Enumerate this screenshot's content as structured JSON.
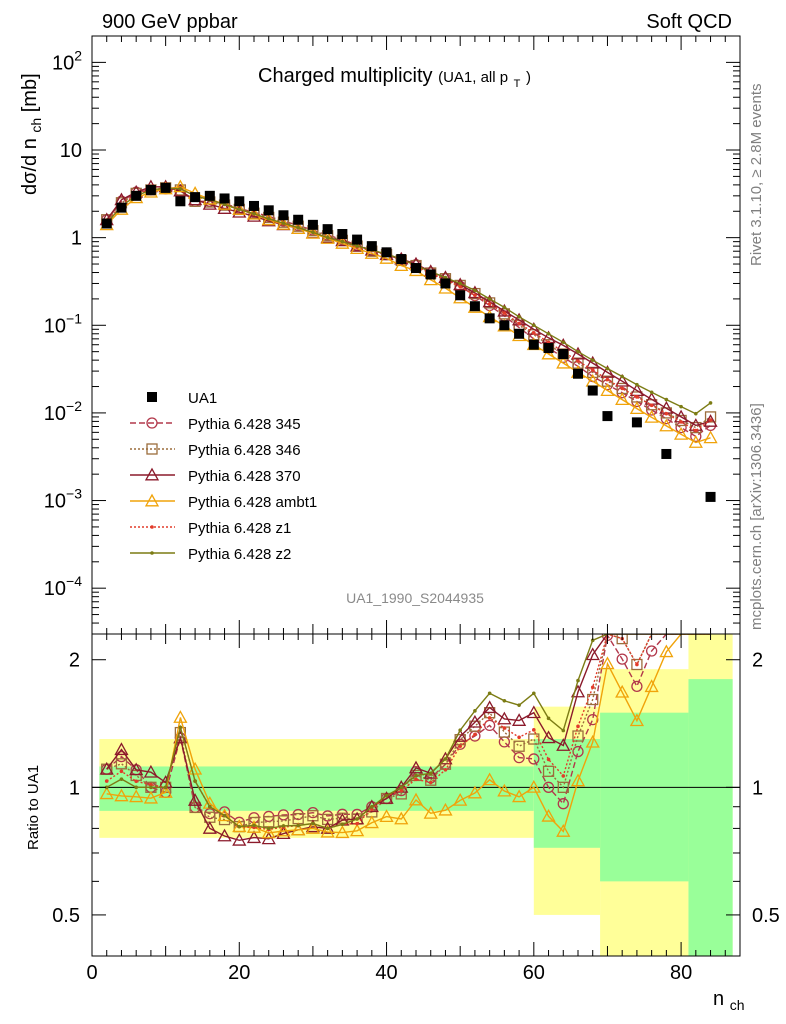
{
  "header": {
    "left": "900 GeV ppbar",
    "right": "Soft QCD"
  },
  "side_labels": {
    "top": "Rivet 3.1.10, ≥ 2.8M events",
    "bottom": "mcplots.cern.ch [arXiv:1306.3436]"
  },
  "chart_data": [
    {
      "type": "line",
      "title": "Charged multiplicity",
      "title_note": "(UA1, all p",
      "title_note_sub": "T",
      "title_note_end": ")",
      "ylabel": "dσ/d n",
      "ylabel_sub": "ch",
      "ylabel_end": " [mb]",
      "y_scale": "log",
      "xlim": [
        0,
        88
      ],
      "ylim": [
        3e-05,
        200
      ],
      "analysis_id": "UA1_1990_S2044935",
      "y_tick_labels": [
        {
          "value": 100,
          "base": "10",
          "exp": "2"
        },
        {
          "value": 10,
          "base": "10",
          "exp": ""
        },
        {
          "value": 1,
          "base": "1",
          "exp": ""
        },
        {
          "value": 0.1,
          "base": "10",
          "exp": "−1"
        },
        {
          "value": 0.01,
          "base": "10",
          "exp": "−2"
        },
        {
          "value": 0.001,
          "base": "10",
          "exp": "−3"
        },
        {
          "value": 0.0001,
          "base": "10",
          "exp": "−4"
        }
      ],
      "data_series": {
        "name": "UA1",
        "color": "#000000",
        "x": [
          2,
          4,
          6,
          8,
          10,
          12,
          14,
          16,
          18,
          20,
          22,
          24,
          26,
          28,
          30,
          32,
          34,
          36,
          38,
          40,
          42,
          44,
          46,
          48,
          50,
          52,
          54,
          56,
          58,
          60,
          62,
          64,
          66,
          68,
          70,
          74,
          78,
          84
        ],
        "y": [
          1.45,
          2.2,
          3.0,
          3.5,
          3.7,
          2.6,
          2.9,
          3.0,
          2.8,
          2.6,
          2.3,
          2.05,
          1.8,
          1.6,
          1.4,
          1.25,
          1.1,
          0.95,
          0.8,
          0.68,
          0.57,
          0.45,
          0.38,
          0.3,
          0.22,
          0.165,
          0.12,
          0.1,
          0.08,
          0.06,
          0.055,
          0.047,
          0.028,
          0.018,
          0.0092,
          0.0078,
          0.0034,
          0.0011
        ]
      },
      "mc_series": [
        {
          "name": "Pythia 6.428 345",
          "color": "#b2384b",
          "dash": "6,3",
          "marker": "circle",
          "x": [
            2,
            4,
            6,
            8,
            10,
            12,
            14,
            16,
            18,
            20,
            22,
            24,
            26,
            28,
            30,
            32,
            34,
            36,
            38,
            40,
            42,
            44,
            46,
            48,
            50,
            52,
            54,
            56,
            58,
            60,
            62,
            64,
            66,
            68,
            70,
            72,
            74,
            76,
            78,
            80,
            82,
            84
          ],
          "y": [
            1.6,
            2.6,
            3.3,
            3.5,
            3.6,
            3.4,
            2.6,
            2.6,
            2.45,
            2.15,
            1.95,
            1.75,
            1.55,
            1.38,
            1.22,
            1.07,
            0.95,
            0.82,
            0.72,
            0.64,
            0.56,
            0.49,
            0.4,
            0.34,
            0.278,
            0.218,
            0.168,
            0.128,
            0.094,
            0.07,
            0.055,
            0.043,
            0.034,
            0.026,
            0.021,
            0.017,
            0.0135,
            0.0108,
            0.0086,
            0.0068,
            0.0054,
            0.0072
          ]
        },
        {
          "name": "Pythia 6.428 346",
          "color": "#9c6d3c",
          "dash": "2,2",
          "marker": "square",
          "x": [
            2,
            4,
            6,
            8,
            10,
            12,
            14,
            16,
            18,
            20,
            22,
            24,
            26,
            28,
            30,
            32,
            34,
            36,
            38,
            40,
            42,
            44,
            46,
            48,
            50,
            52,
            54,
            56,
            58,
            60,
            62,
            64,
            66,
            68,
            70,
            72,
            74,
            76,
            78,
            80,
            82,
            84
          ],
          "y": [
            1.6,
            2.5,
            3.2,
            3.5,
            3.7,
            3.5,
            2.6,
            2.55,
            2.35,
            2.1,
            1.9,
            1.7,
            1.5,
            1.35,
            1.2,
            1.05,
            0.93,
            0.8,
            0.7,
            0.64,
            0.55,
            0.48,
            0.395,
            0.34,
            0.285,
            0.23,
            0.18,
            0.135,
            0.1,
            0.078,
            0.06,
            0.047,
            0.037,
            0.029,
            0.023,
            0.019,
            0.0152,
            0.0124,
            0.01,
            0.0082,
            0.0068,
            0.009
          ]
        },
        {
          "name": "Pythia 6.428 370",
          "color": "#8b1a2b",
          "dash": "",
          "marker": "triangle",
          "x": [
            2,
            4,
            6,
            8,
            10,
            12,
            14,
            16,
            18,
            20,
            22,
            24,
            26,
            28,
            30,
            32,
            34,
            36,
            38,
            40,
            42,
            44,
            46,
            48,
            50,
            52,
            54,
            56,
            58,
            60,
            62,
            64,
            66,
            68,
            70,
            72,
            74,
            76,
            78,
            80,
            82,
            84
          ],
          "y": [
            1.6,
            2.7,
            3.3,
            3.8,
            3.8,
            3.4,
            2.7,
            2.4,
            2.15,
            1.95,
            1.75,
            1.55,
            1.4,
            1.27,
            1.13,
            1.0,
            0.92,
            0.8,
            0.72,
            0.64,
            0.57,
            0.5,
            0.41,
            0.35,
            0.29,
            0.235,
            0.185,
            0.145,
            0.115,
            0.09,
            0.072,
            0.059,
            0.047,
            0.037,
            0.029,
            0.023,
            0.018,
            0.0143,
            0.0113,
            0.009,
            0.0072,
            0.008
          ]
        },
        {
          "name": "Pythia 6.428 ambt1",
          "color": "#f0a30a",
          "dash": "",
          "marker": "triangle-open",
          "x": [
            2,
            4,
            6,
            8,
            10,
            12,
            14,
            16,
            18,
            20,
            22,
            24,
            26,
            28,
            30,
            32,
            34,
            36,
            38,
            40,
            42,
            44,
            46,
            48,
            50,
            52,
            54,
            56,
            58,
            60,
            62,
            64,
            66,
            68,
            70,
            72,
            74,
            76,
            78,
            80,
            82,
            84
          ],
          "y": [
            1.4,
            2.1,
            2.85,
            3.3,
            3.6,
            3.8,
            3.2,
            2.75,
            2.4,
            2.1,
            1.85,
            1.6,
            1.42,
            1.27,
            1.12,
            0.98,
            0.86,
            0.75,
            0.66,
            0.58,
            0.48,
            0.42,
            0.33,
            0.265,
            0.205,
            0.16,
            0.125,
            0.098,
            0.076,
            0.06,
            0.047,
            0.037,
            0.029,
            0.023,
            0.018,
            0.0142,
            0.0112,
            0.0089,
            0.0071,
            0.0057,
            0.0046,
            0.0052
          ]
        },
        {
          "name": "Pythia 6.428 z1",
          "color": "#e23b2a",
          "dash": "2,2",
          "marker": "dot",
          "x": [
            2,
            4,
            6,
            8,
            10,
            12,
            14,
            16,
            18,
            20,
            22,
            24,
            26,
            28,
            30,
            32,
            34,
            36,
            38,
            40,
            42,
            44,
            46,
            48,
            50,
            52,
            54,
            56,
            58,
            60,
            62,
            64,
            66,
            68,
            70,
            72,
            74,
            76,
            78,
            80,
            82,
            84
          ],
          "y": [
            1.5,
            2.4,
            3.1,
            3.55,
            3.7,
            3.6,
            3.0,
            2.7,
            2.4,
            2.1,
            1.85,
            1.63,
            1.45,
            1.3,
            1.15,
            1.0,
            0.9,
            0.78,
            0.71,
            0.65,
            0.56,
            0.47,
            0.39,
            0.33,
            0.275,
            0.22,
            0.175,
            0.138,
            0.105,
            0.082,
            0.064,
            0.05,
            0.039,
            0.031,
            0.024,
            0.019,
            0.0152,
            0.0122,
            0.0098,
            0.0079,
            0.0063,
            0.0083
          ]
        },
        {
          "name": "Pythia 6.428 z2",
          "color": "#7c7c14",
          "dash": "",
          "marker": "dot",
          "x": [
            2,
            4,
            6,
            8,
            10,
            12,
            14,
            16,
            18,
            20,
            22,
            24,
            26,
            28,
            30,
            32,
            34,
            36,
            38,
            40,
            42,
            44,
            46,
            48,
            50,
            52,
            54,
            56,
            58,
            60,
            62,
            64,
            66,
            68,
            70,
            72,
            74,
            76,
            78,
            80,
            82,
            84
          ],
          "y": [
            1.45,
            2.3,
            3.0,
            3.5,
            3.7,
            3.6,
            3.0,
            2.7,
            2.4,
            2.1,
            1.87,
            1.64,
            1.46,
            1.3,
            1.15,
            1.0,
            0.9,
            0.8,
            0.72,
            0.65,
            0.57,
            0.48,
            0.41,
            0.35,
            0.3,
            0.25,
            0.2,
            0.16,
            0.125,
            0.1,
            0.08,
            0.064,
            0.05,
            0.04,
            0.032,
            0.026,
            0.021,
            0.0172,
            0.0142,
            0.0118,
            0.0098,
            0.013
          ]
        }
      ]
    },
    {
      "type": "line",
      "ylabel": "Ratio to UA1",
      "xlabel": "n",
      "xlabel_sub": "ch",
      "xlim": [
        0,
        88
      ],
      "ylim": [
        0.4,
        2.3
      ],
      "y_scale": "log",
      "x_ticks": [
        0,
        20,
        40,
        60,
        80
      ],
      "y_ticks": [
        0.5,
        1,
        2
      ],
      "bands": [
        {
          "x0": 1,
          "x1": 60,
          "inner_lo": 0.88,
          "inner_hi": 1.12,
          "outer_lo": 0.76,
          "outer_hi": 1.3
        },
        {
          "x0": 60,
          "x1": 69,
          "inner_lo": 0.72,
          "inner_hi": 1.3,
          "outer_lo": 0.5,
          "outer_hi": 1.55
        },
        {
          "x0": 69,
          "x1": 81,
          "inner_lo": 0.6,
          "inner_hi": 1.5,
          "outer_lo": 0.4,
          "outer_hi": 1.9
        },
        {
          "x0": 81,
          "x1": 87,
          "inner_lo": 0.4,
          "inner_hi": 1.8,
          "outer_lo": 0.4,
          "outer_hi": 2.3
        }
      ]
    }
  ]
}
